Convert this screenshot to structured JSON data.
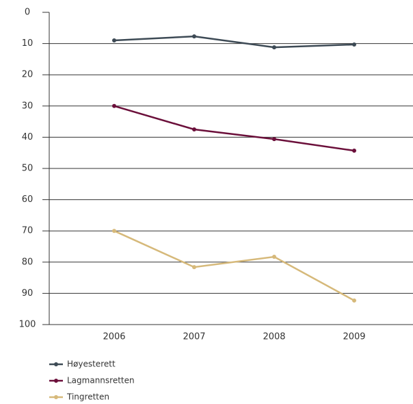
{
  "chart_data": {
    "type": "line",
    "categories": [
      "2006",
      "2007",
      "2008",
      "2009"
    ],
    "series": [
      {
        "name": "Høyesterett",
        "color": "#3d4a55",
        "values": [
          9.0,
          7.7,
          11.2,
          10.3
        ]
      },
      {
        "name": "Lagmannsretten",
        "color": "#6b0f3a",
        "values": [
          30.0,
          37.5,
          40.6,
          44.3
        ]
      },
      {
        "name": "Tingretten",
        "color": "#d6b97a",
        "values": [
          70.0,
          81.6,
          78.3,
          92.3
        ]
      }
    ],
    "ylim": [
      0,
      100
    ],
    "y_inverted": true,
    "yticks": [
      0,
      10,
      20,
      30,
      40,
      50,
      60,
      70,
      80,
      90,
      100
    ],
    "grid": true,
    "legend": "bottom-left"
  }
}
